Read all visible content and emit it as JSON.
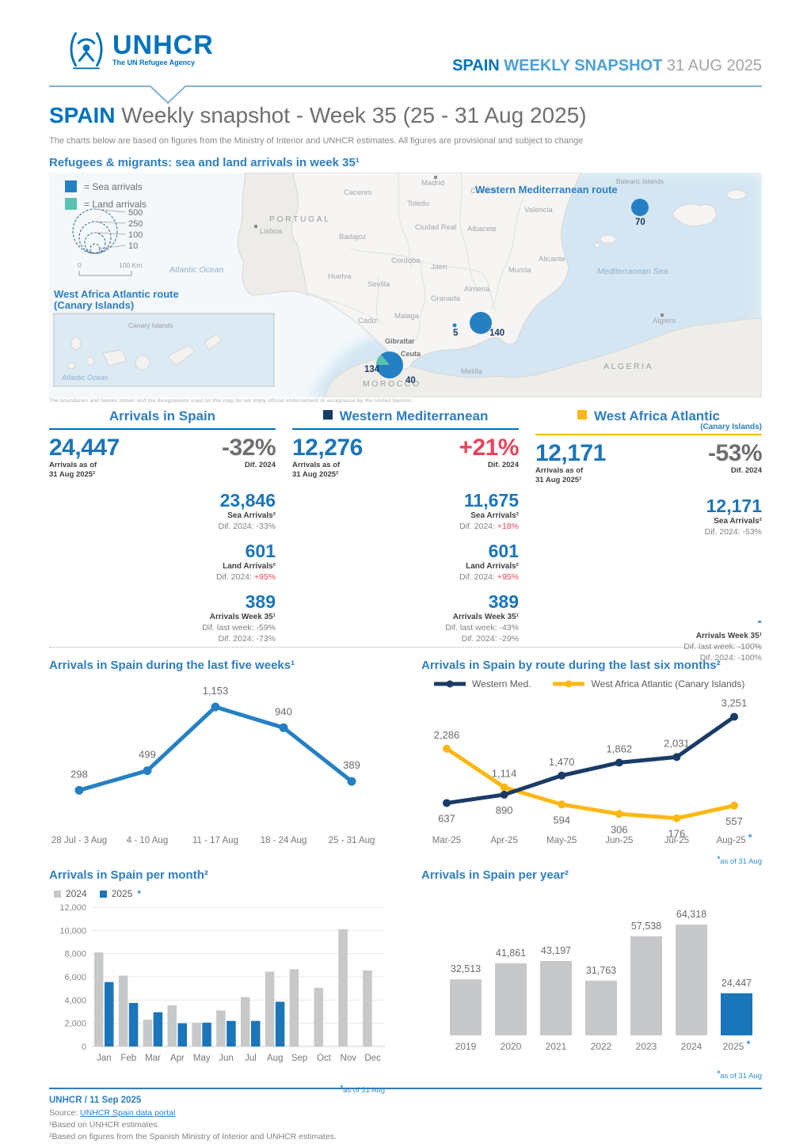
{
  "brand": {
    "blue": "#0072BC",
    "heading_blue": "#2E7EC2",
    "navy": "#1A3B66",
    "yellow": "#FDB714",
    "red": "#E8435A",
    "gray_bar": "#C7C8CA",
    "blue_bar": "#1B75BB",
    "line_blue": "#2580C3",
    "teal": "#5BC2AF",
    "asterisk_blue": "#2E8FD0"
  },
  "asterisk": "*",
  "header": {
    "logo_text": "UNHCR",
    "logo_tagline": "The UN Refugee Agency",
    "right_bold": "SPAIN",
    "right_light": " WEEKLY SNAPSHOT",
    "right_date": " 31 AUG 2025"
  },
  "title": {
    "brand": "SPAIN",
    "rest": " Weekly snapshot - Week 35 (25 - 31 Aug 2025)",
    "subtitle": "The charts below are based on figures from the Ministry of Interior and UNHCR estimates. All figures are provisional and subject to change"
  },
  "map": {
    "heading": "Refugees & migrants: sea and land arrivals in week 35¹",
    "legend": {
      "sea": "= Sea arrivals",
      "land": "= Land arrivals",
      "sizes": [
        "500",
        "250",
        "100",
        "10"
      ],
      "scale_zero": "0",
      "scale_label": "100 Km"
    },
    "routes": {
      "western_med": "Western Mediterranean route",
      "west_africa_1": "West Africa Atlantic route",
      "west_africa_2": "(Canary Islands)"
    },
    "inset": {
      "title": "Canary Islands",
      "ocean": "Atlantic Ocean"
    },
    "labels": {
      "portugal": "PORTUGAL",
      "lisboa": "Lisboa",
      "madrid": "Madrid",
      "caceres": "Caceres",
      "toledo": "Toledo",
      "cuenca": "Cuenca",
      "badajoz": "Badajoz",
      "ciudad_real": "Ciudad Real",
      "albacete": "Albacete",
      "valencia": "Valencia",
      "alicante": "Alicante",
      "murcia": "Murcia",
      "cordoba": "Cordoba",
      "jaen": "Jaen",
      "huelva": "Huelva",
      "sevilla": "Sevilla",
      "granada": "Granada",
      "almeria": "Almeria",
      "malaga": "Malaga",
      "cadiz": "Cadiz",
      "gibraltar": "Gibraltar",
      "ceuta": "Ceuta",
      "melilla": "Melilla",
      "morocco": "MOROCCO",
      "algeria": "ALGERIA",
      "algiers": "Algiers",
      "atlantic": "Atlantic Ocean",
      "mediterranean": "Mediterranean Sea",
      "balearic": "Balearic Islands"
    },
    "bubbles": [
      {
        "place": "strait-of-gibraltar",
        "value": "134"
      },
      {
        "place": "ceuta",
        "value": "40"
      },
      {
        "place": "almeria",
        "value": "140"
      },
      {
        "place": "balearic-islands",
        "value": "70"
      },
      {
        "place": "malaga",
        "value": "5"
      }
    ],
    "attribution": "The boundaries and names shown and the designations used on this map do not imply official endorsement or acceptance by the United Nations."
  },
  "stats": {
    "columns": [
      {
        "title": "Arrivals in Spain",
        "total": "24,447",
        "total_label_1": "Arrivals as of",
        "total_label_2": "31 Aug 2025²",
        "diff": "-32%",
        "diff_label": "Dif. 2024",
        "sea": "23,846",
        "sea_label": "Sea Arrivals²",
        "sea_dif_prefix": "Dif. 2024: ",
        "sea_dif": "-33%",
        "land": "601",
        "land_label": "Land Arrivals²",
        "land_dif_prefix": "Dif. 2024: ",
        "land_dif": "+95%",
        "week": "389",
        "week_label": "Arrivals Week 35¹",
        "week_dif1_prefix": "Dif. last week: ",
        "week_dif1": "-59%",
        "week_dif2_prefix": "Dif. 2024: ",
        "week_dif2": "-73%"
      },
      {
        "title": "Western Mediterranean",
        "total": "12,276",
        "total_label_1": "Arrivals as of",
        "total_label_2": "31 Aug 2025²",
        "diff": "+21%",
        "diff_label": "Dif. 2024",
        "sea": "11,675",
        "sea_label": "Sea Arrivals²",
        "sea_dif_prefix": "Dif. 2024: ",
        "sea_dif": "+18%",
        "land": "601",
        "land_label": "Land Arrivals²",
        "land_dif_prefix": "Dif. 2024: ",
        "land_dif": "+95%",
        "week": "389",
        "week_label": "Arrivals Week 35¹",
        "week_dif1_prefix": "Dif. last week: ",
        "week_dif1": "-43%",
        "week_dif2_prefix": "Dif. 2024: ",
        "week_dif2": "-29%"
      },
      {
        "title": "West Africa Atlantic",
        "subtitle": "(Canary Islands)",
        "total": "12,171",
        "total_label_1": "Arrivals as of",
        "total_label_2": "31 Aug 2025²",
        "diff": "-53%",
        "diff_label": "Dif. 2024",
        "sea": "12,171",
        "sea_label": "Sea Arrivals²",
        "sea_dif_prefix": "Dif. 2024: ",
        "sea_dif": "-53%",
        "week": "-",
        "week_label": "Arrivals Week 35¹",
        "week_dif1_prefix": "Dif. last week: ",
        "week_dif1": "-100%",
        "week_dif2_prefix": "Dif. 2024: ",
        "week_dif2": "-100%"
      }
    ]
  },
  "chart_data": [
    {
      "type": "line",
      "title": "Arrivals in Spain during the last five weeks¹",
      "categories": [
        "28 Jul - 3 Aug",
        "4 - 10 Aug",
        "11 - 17 Aug",
        "18 - 24 Aug",
        "25 - 31 Aug"
      ],
      "values": [
        298,
        499,
        1153,
        940,
        389
      ],
      "labels": [
        "298",
        "499",
        "1,153",
        "940",
        "389"
      ],
      "color": "#2580C3",
      "ylim": [
        0,
        1300
      ],
      "grid": false,
      "legend": "none"
    },
    {
      "type": "line",
      "title": "Arrivals in Spain by route during the last six months²",
      "categories": [
        "Mar-25",
        "Apr-25",
        "May-25",
        "Jun-25",
        "Jul-25",
        "Aug-25"
      ],
      "series": [
        {
          "name": "Western Med.",
          "color": "#1A3B66",
          "values": [
            637,
            890,
            1470,
            1862,
            2031,
            3251
          ],
          "labels": [
            "637",
            "890",
            "1,470",
            "1,862",
            "2,031",
            "3,251"
          ],
          "label_pos": [
            "below",
            "below",
            "above",
            "above",
            "above",
            "above"
          ]
        },
        {
          "name": "West Africa Atlantic (Canary Islands)",
          "color": "#FDB714",
          "values": [
            2286,
            1114,
            594,
            306,
            176,
            557
          ],
          "labels": [
            "2,286",
            "1,114",
            "594",
            "306",
            "176",
            "557"
          ],
          "label_pos": [
            "above",
            "above",
            "below",
            "below",
            "below",
            "below"
          ]
        }
      ],
      "ylim": [
        0,
        3600
      ],
      "legend_position": "top",
      "footnote": "as of 31 Aug",
      "last_category_asterisk": true
    },
    {
      "type": "bar",
      "title": "Arrivals in Spain per month²",
      "categories": [
        "Jan",
        "Feb",
        "Mar",
        "Apr",
        "May",
        "Jun",
        "Jul",
        "Aug",
        "Sep",
        "Oct",
        "Nov",
        "Dec"
      ],
      "series": [
        {
          "name": "2024",
          "color": "#C7C8CA",
          "values": [
            8100,
            6100,
            2300,
            3550,
            2050,
            3100,
            4250,
            6450,
            6650,
            5050,
            10100,
            6550
          ]
        },
        {
          "name": "2025",
          "color": "#1B75BB",
          "values": [
            5550,
            3750,
            2950,
            2000,
            2050,
            2200,
            2200,
            3850,
            null,
            null,
            null,
            null
          ]
        }
      ],
      "ylabel_ticks": [
        "0",
        "2,000",
        "4,000",
        "6,000",
        "8,000",
        "10,000",
        "12,000"
      ],
      "ylim": [
        0,
        12000
      ],
      "grid": true,
      "legend_position": "top",
      "footnote": "as of 31 Aug",
      "legend_2025_asterisk": true
    },
    {
      "type": "bar",
      "title": "Arrivals in Spain per year²",
      "categories": [
        "2019",
        "2020",
        "2021",
        "2022",
        "2023",
        "2024",
        "2025"
      ],
      "values": [
        32513,
        41861,
        43197,
        31763,
        57538,
        64318,
        24447
      ],
      "labels": [
        "32,513",
        "41,861",
        "43,197",
        "31,763",
        "57,538",
        "64,318",
        "24,447"
      ],
      "bar_color": "#C7C8CA",
      "highlight_color": "#1B75BB",
      "highlight_index": 6,
      "ylim": [
        0,
        70000
      ],
      "grid": false,
      "footnote": "as of 31 Aug",
      "last_category_asterisk": true
    }
  ],
  "footer": {
    "credit": "UNHCR / 11 Sep 2025",
    "source_prefix": "Source: ",
    "source_link": "UNHCR Spain data portal",
    "fn1": "¹Based on UNHCR estimates.",
    "fn2": "²Based on figures from the Spanish Ministry of Interior and UNHCR estimates."
  }
}
